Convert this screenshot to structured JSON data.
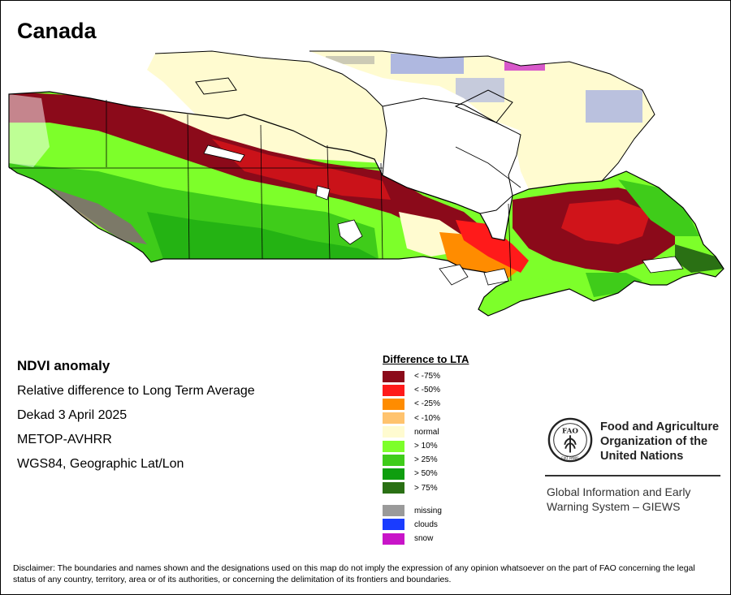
{
  "title": "Canada",
  "info": {
    "heading": "NDVI anomaly",
    "lines": [
      "Relative difference to Long Term Average",
      "Dekad 3 April 2025",
      "METOP-AVHRR",
      "WGS84, Geographic Lat/Lon"
    ]
  },
  "legend": {
    "title": "Difference to LTA",
    "classes": [
      {
        "label": "< -75%",
        "color": "#8b0a1a"
      },
      {
        "label": "< -50%",
        "color": "#ff1a1a"
      },
      {
        "label": "< -25%",
        "color": "#ff8c00"
      },
      {
        "label": "< -10%",
        "color": "#ffc36e"
      },
      {
        "label": "normal",
        "color": "#fffbd0"
      },
      {
        "label": "> 10%",
        "color": "#7dff2a"
      },
      {
        "label": "> 25%",
        "color": "#3fcc1a"
      },
      {
        "label": "> 50%",
        "color": "#0f9e0f"
      },
      {
        "label": "> 75%",
        "color": "#2a7014"
      }
    ],
    "extra": [
      {
        "label": "missing",
        "color": "#9a9a9a"
      },
      {
        "label": "clouds",
        "color": "#1a3cff"
      },
      {
        "label": "snow",
        "color": "#c814c8"
      }
    ]
  },
  "fao": {
    "org_name": "Food and Agriculture Organization of the United Nations",
    "logo_text": "FAO",
    "logo_motto": "FIAT PANIS",
    "giews": "Global Information and Early Warning System – GIEWS"
  },
  "disclaimer": "Disclaimer: The boundaries and names shown and the designations used on this map do not imply the expression of any opinion whatsoever on the part of FAO concerning the legal status of any country, territory, area or of its authorities, or concerning the delimitation of its frontiers and boundaries."
}
